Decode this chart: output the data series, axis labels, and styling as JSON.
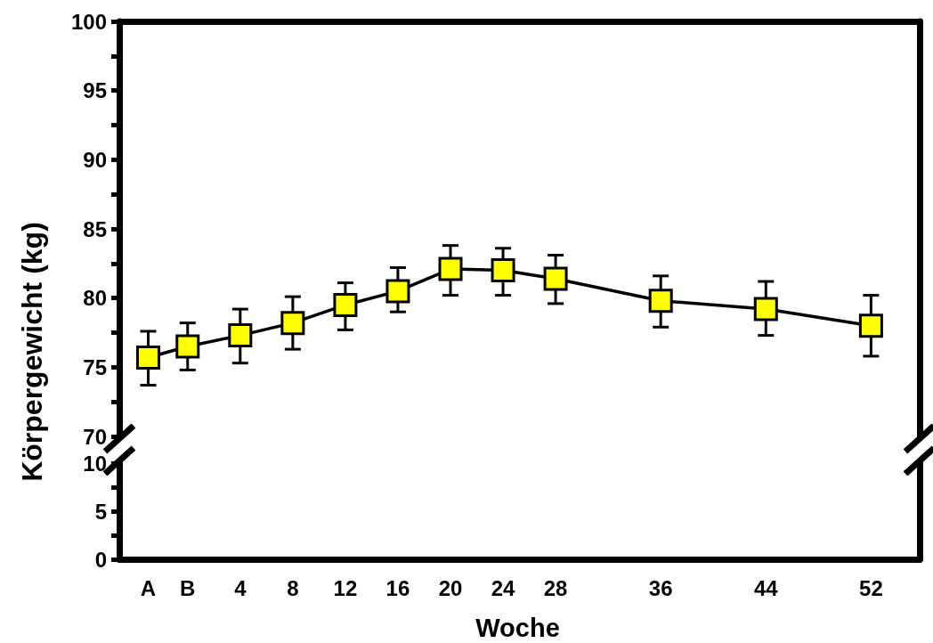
{
  "chart_data": [
    {
      "type": "line",
      "ylabel": "Körpergewicht (kg)",
      "xlim": [
        -5.2,
        55.7
      ],
      "ylim": [
        70,
        100
      ],
      "yticks": [
        70,
        {
          "value": 72.5,
          "label": null
        },
        75,
        {
          "value": 77.5,
          "label": null
        },
        80,
        {
          "value": 82.5,
          "label": null
        },
        85,
        {
          "value": 87.5,
          "label": null
        },
        90,
        {
          "value": 92.5,
          "label": null
        },
        95,
        {
          "value": 97.5,
          "label": null
        },
        100
      ],
      "tick_labels": "y",
      "marker": "square",
      "line_style": "solid",
      "series": [
        {
          "color": "#ffff00",
          "x": [
            -3,
            0,
            4,
            8,
            12,
            16,
            20,
            24,
            28,
            36,
            44,
            52
          ],
          "values": [
            75.7,
            76.5,
            77.3,
            78.2,
            79.5,
            80.5,
            82.1,
            82.0,
            81.4,
            79.8,
            79.2,
            78.0
          ],
          "errors": [
            [
              73.7,
              77.6
            ],
            [
              74.8,
              78.2
            ],
            [
              75.3,
              79.2
            ],
            [
              76.3,
              80.1
            ],
            [
              77.7,
              81.1
            ],
            [
              79.0,
              82.2
            ],
            [
              80.2,
              83.8
            ],
            [
              80.2,
              83.6
            ],
            [
              79.6,
              83.1
            ],
            [
              77.9,
              81.6
            ],
            [
              77.3,
              81.2
            ],
            [
              75.8,
              80.2
            ]
          ]
        }
      ]
    },
    {
      "type": "line",
      "xlabel": "Woche",
      "xlim": [
        -5.2,
        55.7
      ],
      "ylim": [
        0,
        10
      ],
      "xticks": [
        {
          "value": -3,
          "label": "A"
        },
        {
          "value": 0,
          "label": "B"
        },
        4,
        8,
        12,
        16,
        20,
        24,
        28,
        36,
        44,
        52
      ],
      "yticks": [
        0,
        {
          "value": 2.5,
          "label": null
        },
        5,
        {
          "value": 7.5,
          "label": null
        },
        10
      ],
      "grid": false
    }
  ]
}
